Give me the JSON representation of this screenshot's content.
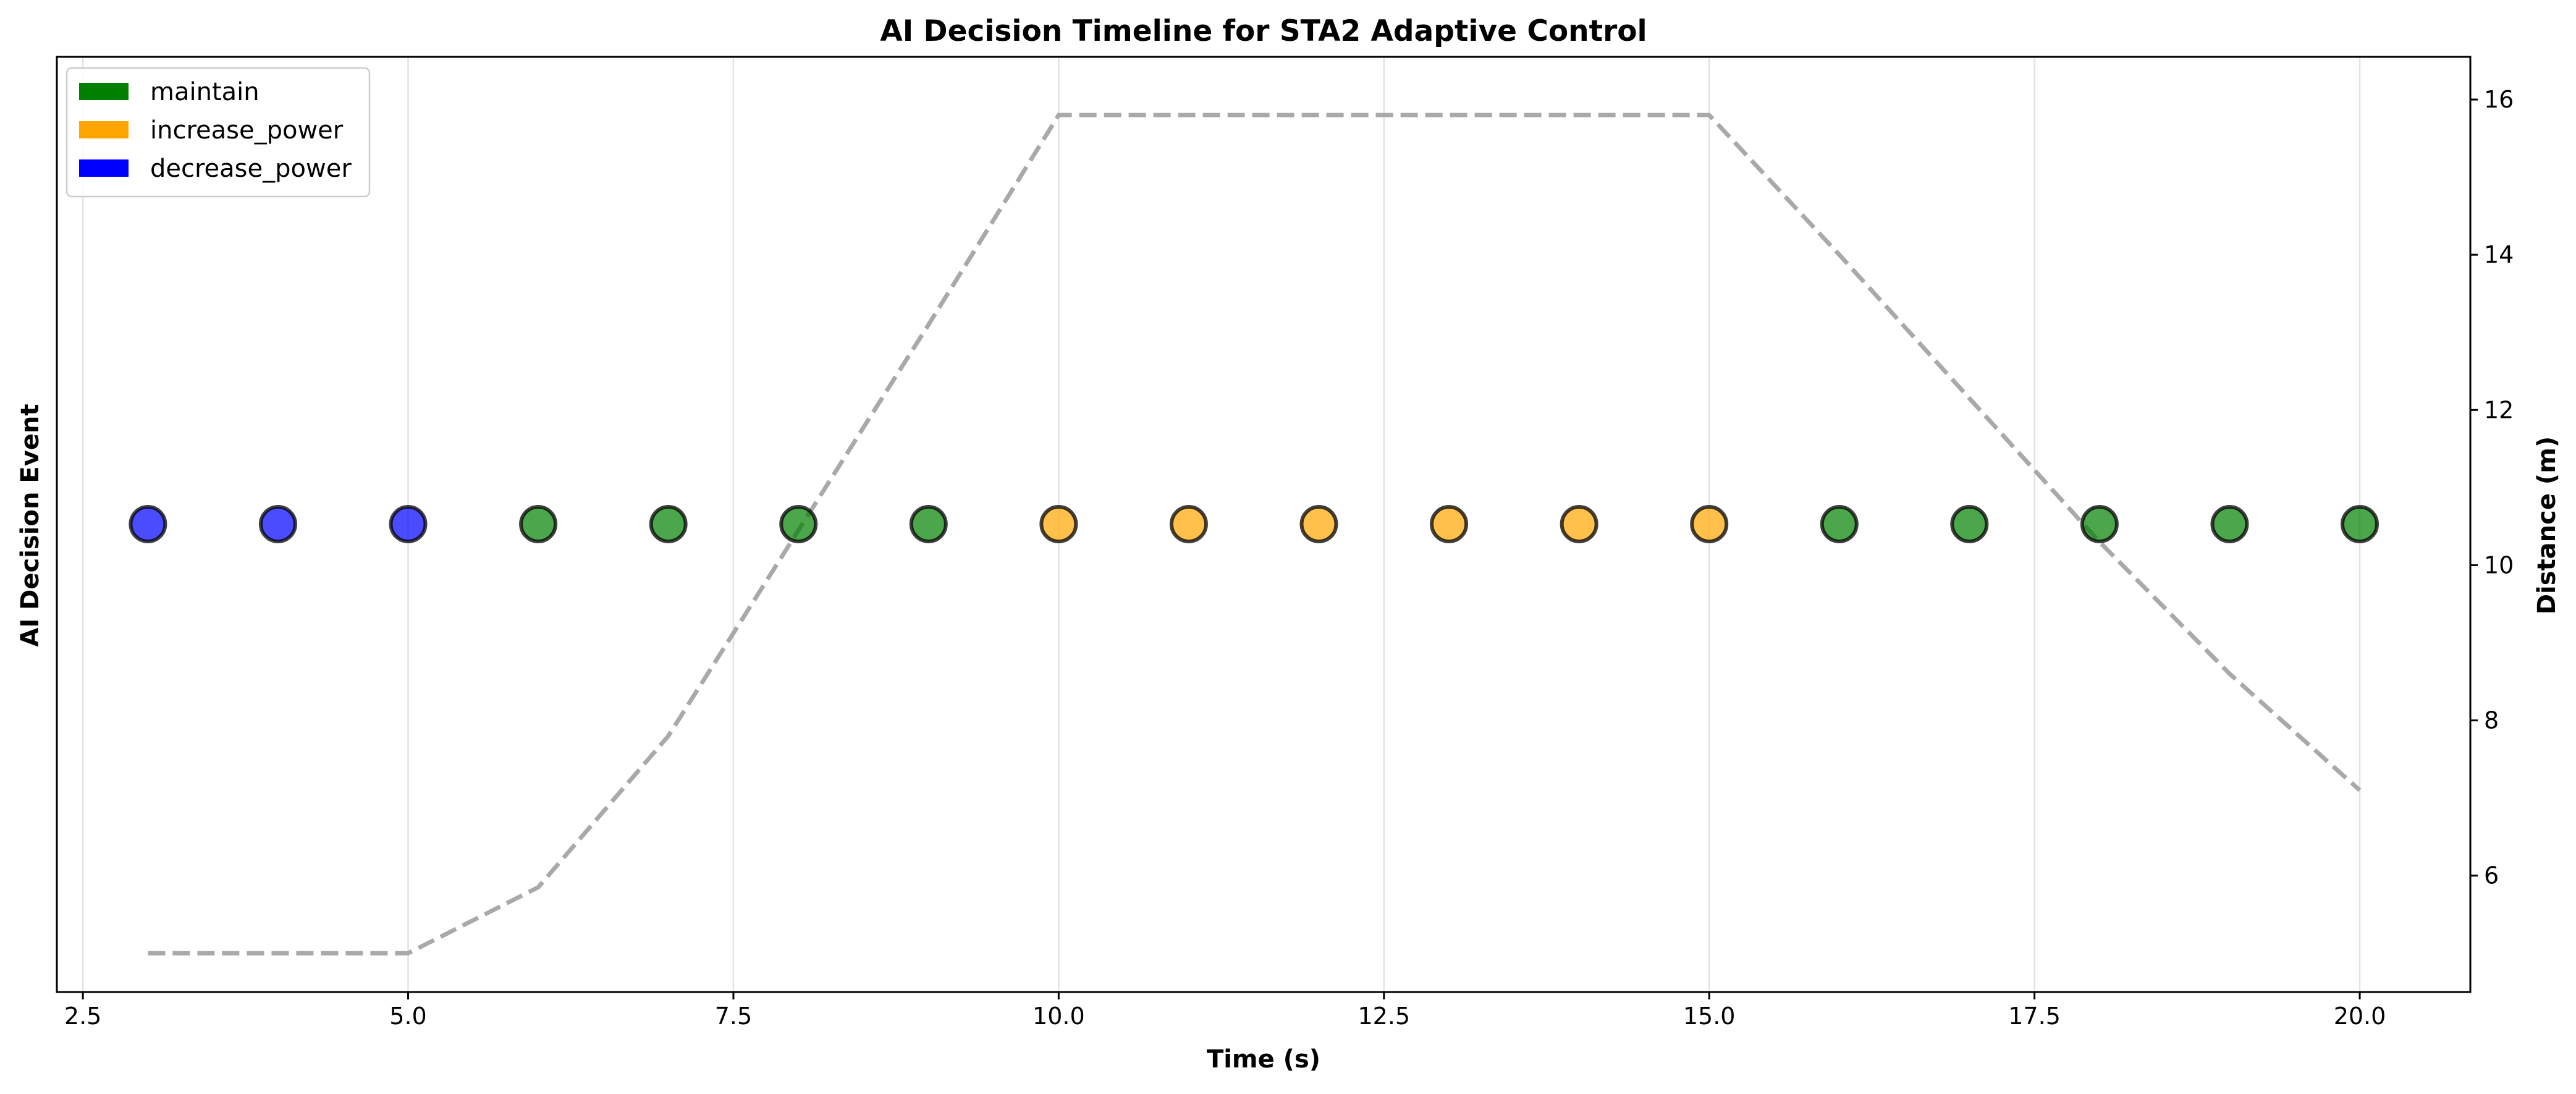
{
  "chart_data": {
    "type": "scatter",
    "title": "AI Decision Timeline for STA2 Adaptive Control",
    "xlabel": "Time (s)",
    "ylabel": "AI Decision Event",
    "y2label": "Distance (m)",
    "xlim": [
      2.3,
      20.85
    ],
    "y2lim": [
      4.5,
      16.55
    ],
    "x_ticks": [
      "2.5",
      "5.0",
      "7.5",
      "10.0",
      "12.5",
      "15.0",
      "17.5",
      "20.0"
    ],
    "y2_ticks": [
      "6",
      "8",
      "10",
      "12",
      "14",
      "16"
    ],
    "grid": "x-only",
    "legend_position": "upper-left",
    "legend": [
      {
        "label": "maintain",
        "color": "#008000"
      },
      {
        "label": "increase_power",
        "color": "#FFA500"
      },
      {
        "label": "decrease_power",
        "color": "#0000FF"
      }
    ],
    "events": [
      {
        "t": 3,
        "decision": "decrease_power"
      },
      {
        "t": 4,
        "decision": "decrease_power"
      },
      {
        "t": 5,
        "decision": "decrease_power"
      },
      {
        "t": 6,
        "decision": "maintain"
      },
      {
        "t": 7,
        "decision": "maintain"
      },
      {
        "t": 8,
        "decision": "maintain"
      },
      {
        "t": 9,
        "decision": "maintain"
      },
      {
        "t": 10,
        "decision": "increase_power"
      },
      {
        "t": 11,
        "decision": "increase_power"
      },
      {
        "t": 12,
        "decision": "increase_power"
      },
      {
        "t": 13,
        "decision": "increase_power"
      },
      {
        "t": 14,
        "decision": "increase_power"
      },
      {
        "t": 15,
        "decision": "increase_power"
      },
      {
        "t": 16,
        "decision": "maintain"
      },
      {
        "t": 17,
        "decision": "maintain"
      },
      {
        "t": 18,
        "decision": "maintain"
      },
      {
        "t": 19,
        "decision": "maintain"
      },
      {
        "t": 20,
        "decision": "maintain"
      }
    ],
    "distance_series": {
      "style": "dashed",
      "color": "#A9A9A9",
      "x": [
        3,
        4,
        5,
        6,
        7,
        8,
        9,
        10,
        11,
        12,
        13,
        14,
        15,
        16,
        17,
        18,
        19,
        20
      ],
      "y": [
        5.0,
        5.0,
        5.0,
        5.85,
        7.8,
        10.45,
        13.1,
        15.8,
        15.8,
        15.8,
        15.8,
        15.8,
        15.8,
        14.0,
        12.15,
        10.3,
        8.6,
        7.1
      ]
    }
  }
}
